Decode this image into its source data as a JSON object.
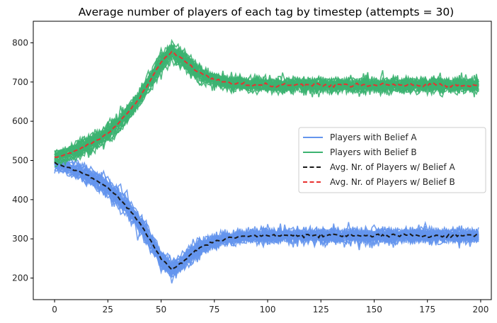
{
  "chart_data": {
    "type": "line",
    "title": "Average number of players of each tag by timestep (attempts = 30)",
    "xlabel": "",
    "ylabel": "",
    "xlim": [
      -10,
      205
    ],
    "ylim": [
      145,
      855
    ],
    "xticks": [
      0,
      25,
      50,
      75,
      100,
      125,
      150,
      175,
      200
    ],
    "yticks": [
      200,
      300,
      400,
      500,
      600,
      700,
      800
    ],
    "grid": false,
    "legend_position": "center-right",
    "runs_per_belief": 30,
    "x": [
      0,
      5,
      10,
      15,
      20,
      25,
      30,
      35,
      40,
      45,
      50,
      55,
      60,
      65,
      70,
      75,
      80,
      85,
      90,
      95,
      100,
      110,
      120,
      130,
      140,
      150,
      160,
      170,
      180,
      190,
      199
    ],
    "series": [
      {
        "name": "Players with Belief A",
        "kind": "runs",
        "color": "#6495ED",
        "values": [
          492,
          485,
          475,
          462,
          448,
          430,
          405,
          375,
          340,
          295,
          250,
          222,
          240,
          265,
          283,
          293,
          300,
          304,
          307,
          308,
          308,
          308,
          308,
          308,
          308,
          308,
          308,
          308,
          308,
          308,
          308
        ]
      },
      {
        "name": "Players with Belief B",
        "kind": "runs",
        "color": "#3CB371",
        "values": [
          508,
          515,
          525,
          538,
          552,
          570,
          595,
          625,
          660,
          705,
          750,
          778,
          760,
          735,
          717,
          707,
          700,
          696,
          693,
          692,
          692,
          692,
          692,
          692,
          692,
          692,
          692,
          692,
          692,
          692,
          692
        ]
      },
      {
        "name": "Avg. Nr. of Players w/ Belief A",
        "kind": "average",
        "color": "#1a1a1a",
        "values": [
          492,
          485,
          475,
          462,
          448,
          430,
          405,
          375,
          340,
          295,
          250,
          222,
          240,
          265,
          283,
          293,
          300,
          304,
          307,
          308,
          308,
          308,
          308,
          308,
          308,
          308,
          308,
          308,
          308,
          308,
          308
        ]
      },
      {
        "name": "Avg. Nr. of Players w/ Belief B",
        "kind": "average",
        "color": "#E8312F",
        "values": [
          508,
          515,
          525,
          538,
          552,
          570,
          595,
          625,
          660,
          705,
          750,
          778,
          760,
          735,
          717,
          707,
          700,
          696,
          693,
          692,
          692,
          692,
          692,
          692,
          692,
          692,
          692,
          692,
          692,
          692,
          692
        ]
      }
    ]
  }
}
